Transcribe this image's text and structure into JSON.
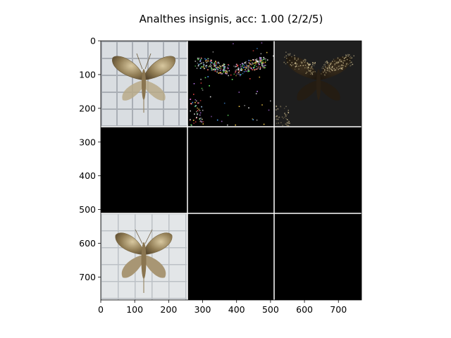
{
  "chart_data": {
    "type": "image-grid",
    "title": "Analthes insignis, acc: 1.00 (2/2/5)",
    "xlim": [
      0,
      768
    ],
    "ylim": [
      768,
      0
    ],
    "xticks": [
      0,
      100,
      200,
      300,
      400,
      500,
      600,
      700
    ],
    "yticks": [
      0,
      100,
      200,
      300,
      400,
      500,
      600,
      700
    ],
    "grid_rows": 3,
    "grid_cols": 3,
    "tile_size": 256,
    "cells": [
      {
        "row": 0,
        "col": 0,
        "content": "moth-photo-on-grid"
      },
      {
        "row": 0,
        "col": 1,
        "content": "sparse-colored-attribution-noise"
      },
      {
        "row": 0,
        "col": 2,
        "content": "dim-masked-moth"
      },
      {
        "row": 1,
        "col": 0,
        "content": "black"
      },
      {
        "row": 1,
        "col": 1,
        "content": "black"
      },
      {
        "row": 1,
        "col": 2,
        "content": "black"
      },
      {
        "row": 2,
        "col": 0,
        "content": "moth-photo-light"
      },
      {
        "row": 2,
        "col": 1,
        "content": "black"
      },
      {
        "row": 2,
        "col": 2,
        "content": "black"
      }
    ],
    "colors": {
      "background": "#ffffff",
      "separator": "#ffffff",
      "black_tile": "#000000",
      "axis": "#000000"
    }
  }
}
